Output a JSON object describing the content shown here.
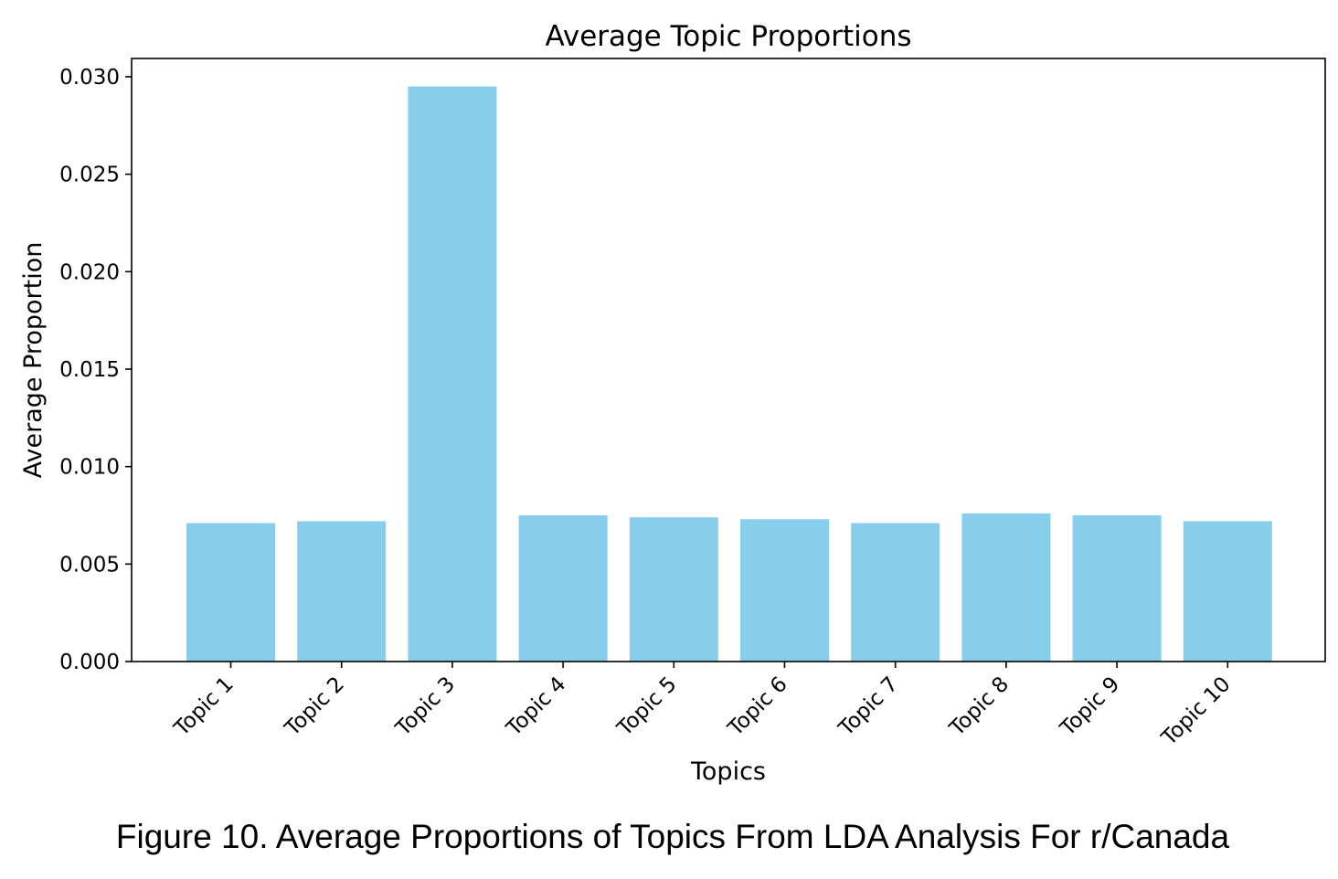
{
  "caption": "Figure 10. Average Proportions of Topics From LDA Analysis For r/Canada",
  "chart_data": {
    "type": "bar",
    "title": "Average Topic Proportions",
    "xlabel": "Topics",
    "ylabel": "Average Proportion",
    "categories": [
      "Topic 1",
      "Topic 2",
      "Topic 3",
      "Topic 4",
      "Topic 5",
      "Topic 6",
      "Topic 7",
      "Topic 8",
      "Topic 9",
      "Topic 10"
    ],
    "values": [
      0.0071,
      0.0072,
      0.0295,
      0.0075,
      0.0074,
      0.0073,
      0.0071,
      0.0076,
      0.0075,
      0.0072
    ],
    "yticks": [
      "0.000",
      "0.005",
      "0.010",
      "0.015",
      "0.020",
      "0.025",
      "0.030"
    ],
    "ylim": [
      0,
      0.03
    ],
    "bar_color": "#87ceeb",
    "grid": false
  }
}
